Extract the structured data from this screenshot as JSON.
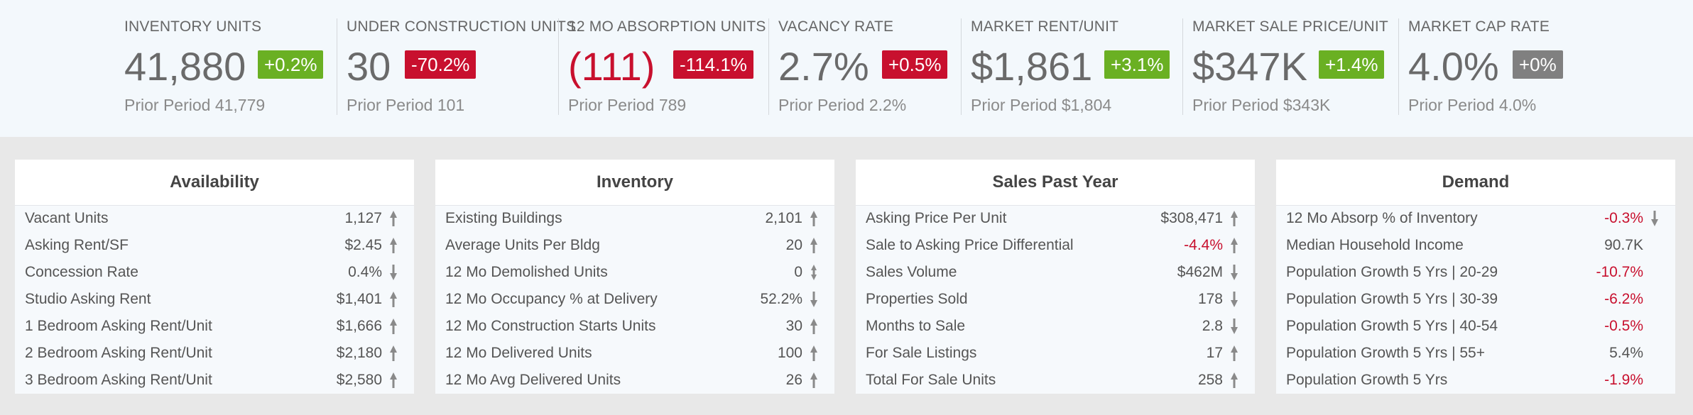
{
  "kpis": [
    {
      "label": "INVENTORY UNITS",
      "value": "41,880",
      "value_negative": false,
      "badge": "+0.2%",
      "badge_type": "up",
      "prior": "Prior Period 41,779"
    },
    {
      "label": "UNDER CONSTRUCTION UNITS",
      "value": "30",
      "value_negative": false,
      "badge": "-70.2%",
      "badge_type": "down",
      "prior": "Prior Period 101"
    },
    {
      "label": "12 MO ABSORPTION UNITS",
      "value": "(111)",
      "value_negative": true,
      "badge": "-114.1%",
      "badge_type": "down",
      "prior": "Prior Period 789"
    },
    {
      "label": "VACANCY RATE",
      "value": "2.7%",
      "value_negative": false,
      "badge": "+0.5%",
      "badge_type": "down",
      "prior": "Prior Period 2.2%"
    },
    {
      "label": "MARKET RENT/UNIT",
      "value": "$1,861",
      "value_negative": false,
      "badge": "+3.1%",
      "badge_type": "up",
      "prior": "Prior Period $1,804"
    },
    {
      "label": "MARKET SALE PRICE/UNIT",
      "value": "$347K",
      "value_negative": false,
      "badge": "+1.4%",
      "badge_type": "up",
      "prior": "Prior Period $343K"
    },
    {
      "label": "MARKET CAP RATE",
      "value": "4.0%",
      "value_negative": false,
      "badge": "+0%",
      "badge_type": "flat",
      "prior": "Prior Period 4.0%"
    }
  ],
  "cards": [
    {
      "title": "Availability",
      "rows": [
        {
          "label": "Vacant Units",
          "value": "1,127",
          "arrow": "up"
        },
        {
          "label": "Asking Rent/SF",
          "value": "$2.45",
          "arrow": "up"
        },
        {
          "label": "Concession Rate",
          "value": "0.4%",
          "arrow": "down"
        },
        {
          "label": "Studio Asking Rent",
          "value": "$1,401",
          "arrow": "up"
        },
        {
          "label": "1 Bedroom Asking Rent/Unit",
          "value": "$1,666",
          "arrow": "up"
        },
        {
          "label": "2 Bedroom Asking Rent/Unit",
          "value": "$2,180",
          "arrow": "up"
        },
        {
          "label": "3 Bedroom Asking Rent/Unit",
          "value": "$2,580",
          "arrow": "up"
        }
      ]
    },
    {
      "title": "Inventory",
      "rows": [
        {
          "label": "Existing Buildings",
          "value": "2,101",
          "arrow": "up"
        },
        {
          "label": "Average Units Per Bldg",
          "value": "20",
          "arrow": "up"
        },
        {
          "label": "12 Mo Demolished Units",
          "value": "0",
          "arrow": "flat"
        },
        {
          "label": "12 Mo Occupancy % at Delivery",
          "value": "52.2%",
          "arrow": "down"
        },
        {
          "label": "12 Mo Construction Starts Units",
          "value": "30",
          "arrow": "up"
        },
        {
          "label": "12 Mo Delivered Units",
          "value": "100",
          "arrow": "up"
        },
        {
          "label": "12 Mo Avg Delivered Units",
          "value": "26",
          "arrow": "up"
        }
      ]
    },
    {
      "title": "Sales Past Year",
      "rows": [
        {
          "label": "Asking Price Per Unit",
          "value": "$308,471",
          "arrow": "up"
        },
        {
          "label": "Sale to Asking Price Differential",
          "value": "-4.4%",
          "negative": true,
          "arrow": "up"
        },
        {
          "label": "Sales Volume",
          "value": "$462M",
          "arrow": "down"
        },
        {
          "label": "Properties Sold",
          "value": "178",
          "arrow": "down"
        },
        {
          "label": "Months to Sale",
          "value": "2.8",
          "arrow": "down"
        },
        {
          "label": "For Sale Listings",
          "value": "17",
          "arrow": "up"
        },
        {
          "label": "Total For Sale Units",
          "value": "258",
          "arrow": "up"
        }
      ]
    },
    {
      "title": "Demand",
      "rows": [
        {
          "label": "12 Mo Absorp % of Inventory",
          "value": "-0.3%",
          "negative": true,
          "arrow": "down"
        },
        {
          "label": "Median Household Income",
          "value": "90.7K",
          "arrow": "none"
        },
        {
          "label": "Population Growth 5 Yrs | 20-29",
          "value": "-10.7%",
          "negative": true,
          "arrow": "none"
        },
        {
          "label": "Population Growth 5 Yrs | 30-39",
          "value": "-6.2%",
          "negative": true,
          "arrow": "none"
        },
        {
          "label": "Population Growth 5 Yrs | 40-54",
          "value": "-0.5%",
          "negative": true,
          "arrow": "none"
        },
        {
          "label": "Population Growth 5 Yrs | 55+",
          "value": "5.4%",
          "arrow": "none"
        },
        {
          "label": "Population Growth 5 Yrs",
          "value": "-1.9%",
          "negative": true,
          "arrow": "none"
        }
      ]
    }
  ],
  "colors": {
    "positive": "#6ab023",
    "negative": "#c8102e",
    "neutral": "#808080"
  }
}
